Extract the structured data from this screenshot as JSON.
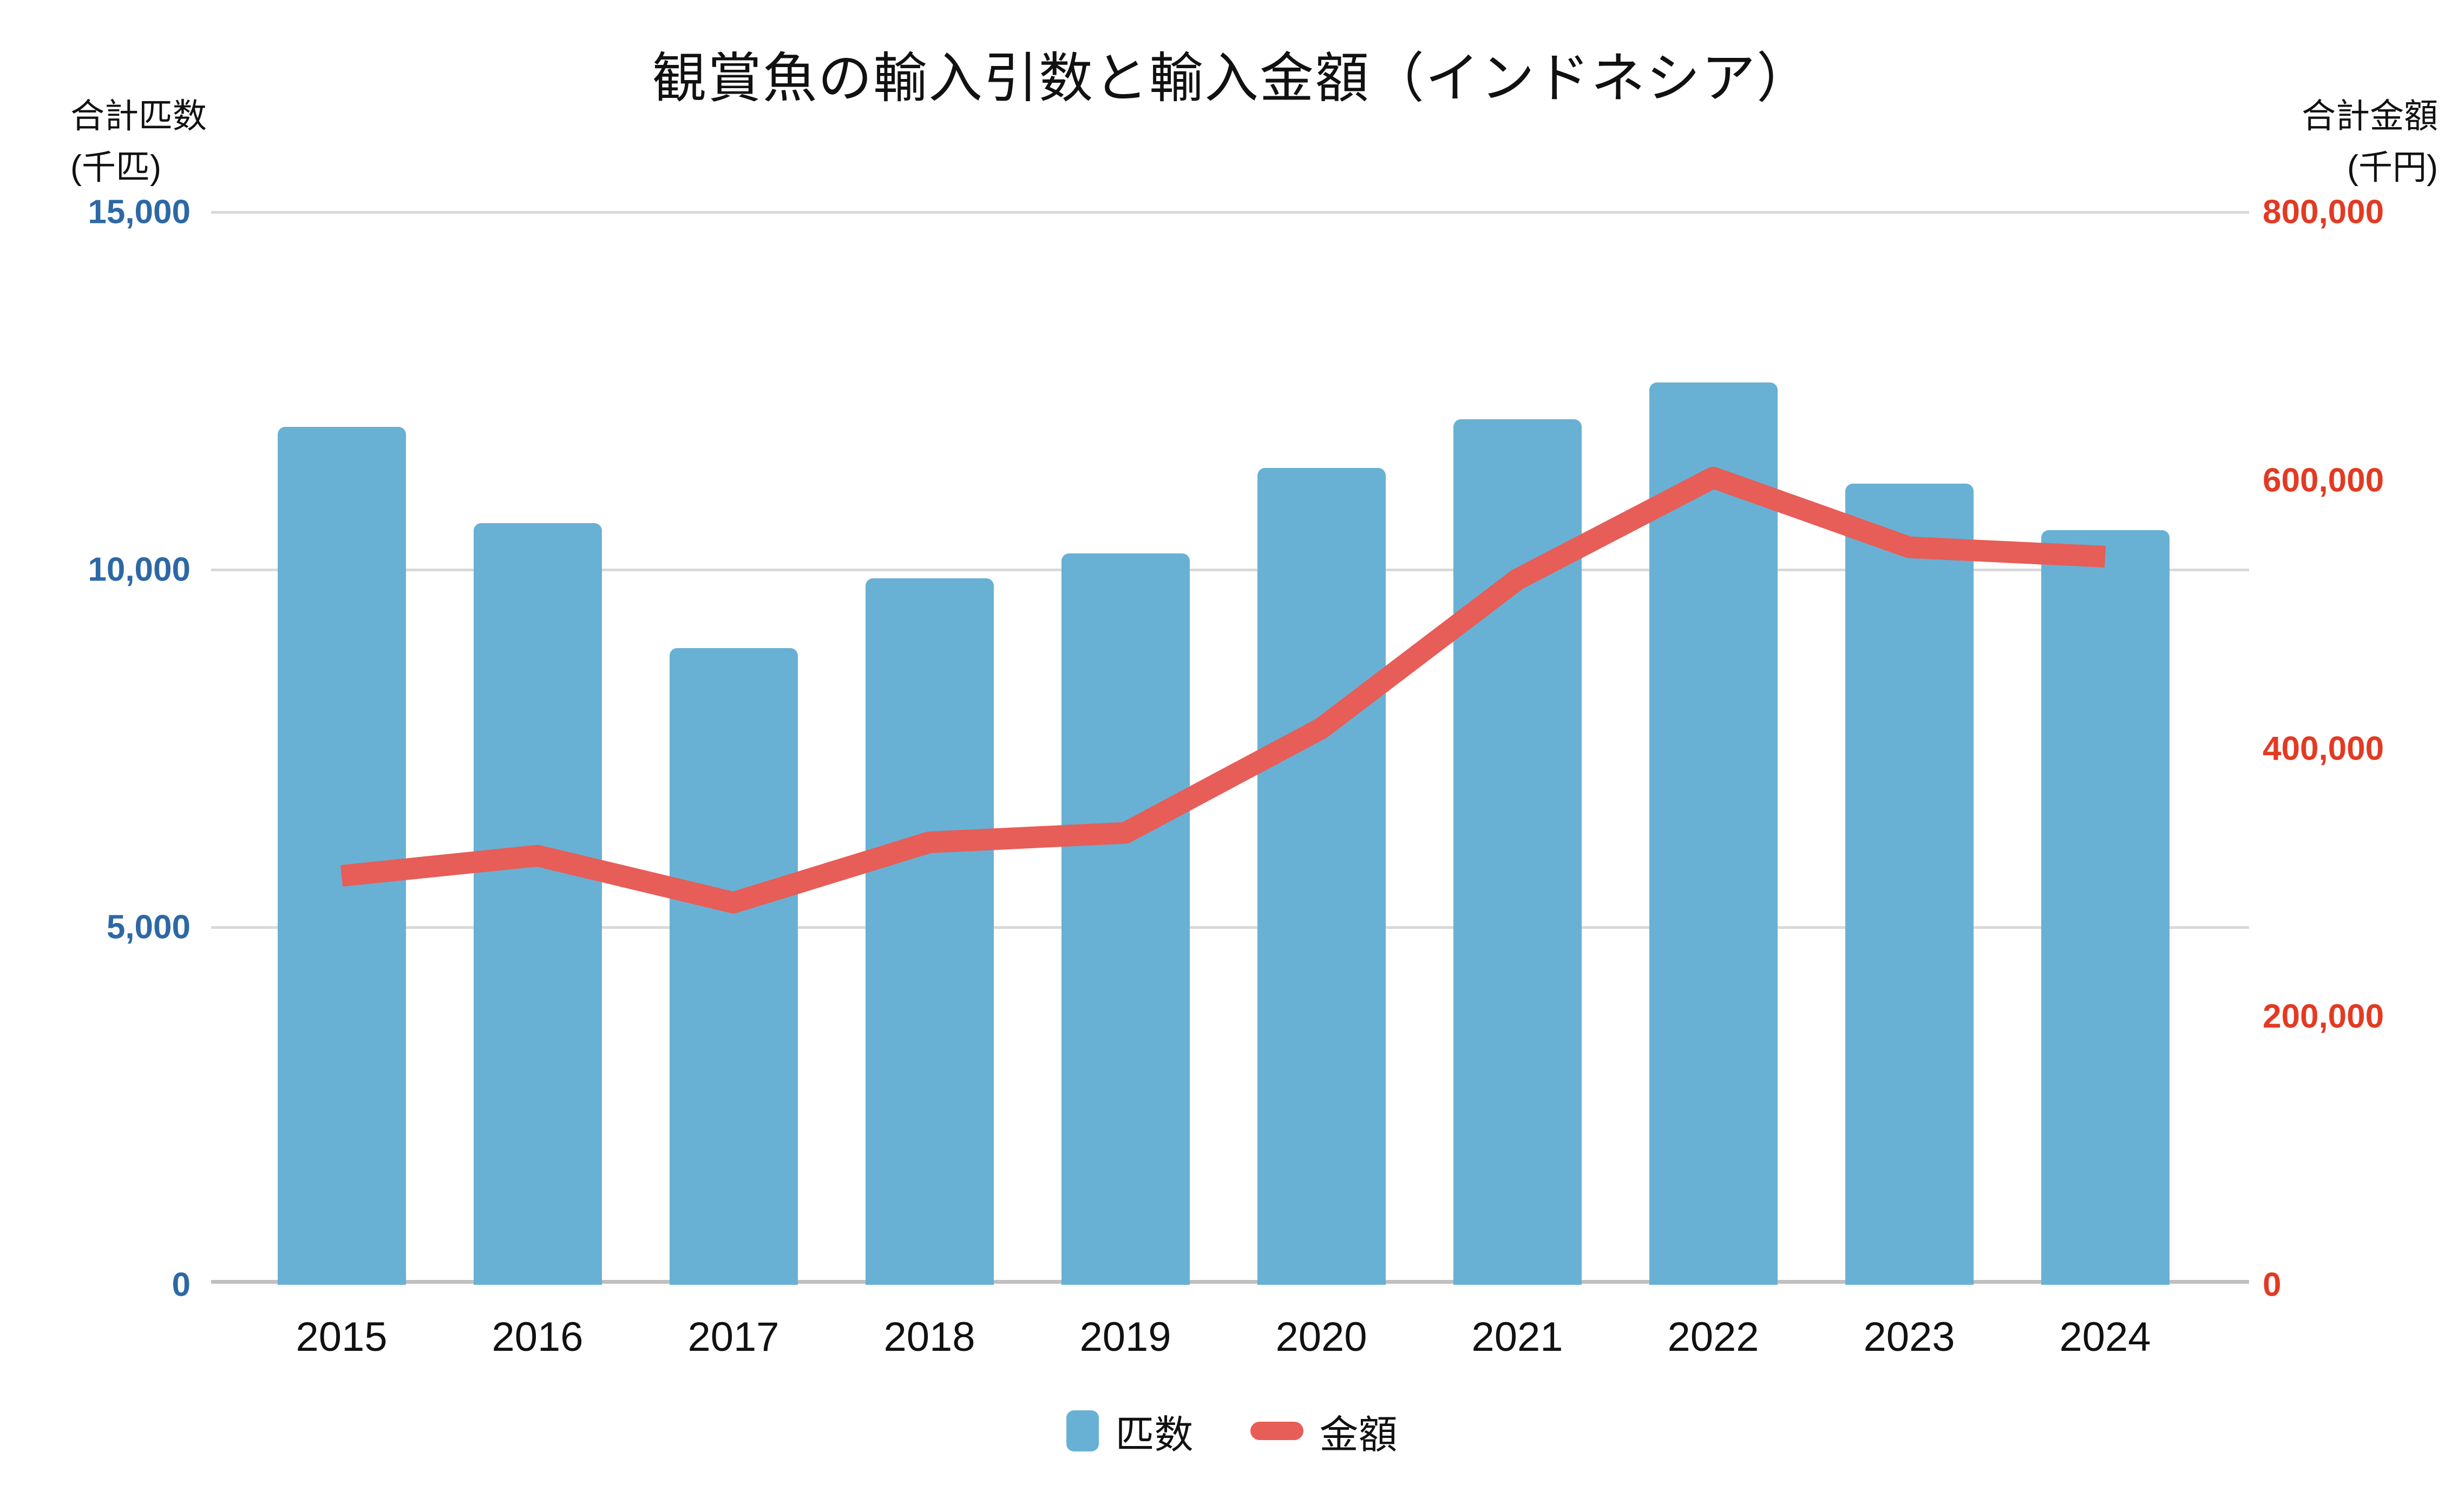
{
  "chart_data": {
    "type": "bar+line",
    "title": "観賞魚の輸入引数と輸入金額（インドネシア）",
    "categories": [
      "2015",
      "2016",
      "2017",
      "2018",
      "2019",
      "2020",
      "2021",
      "2022",
      "2023",
      "2024"
    ],
    "series": [
      {
        "name": "匹数",
        "type": "bar",
        "axis": "left",
        "color": "#68B1D4",
        "values": [
          12000,
          10650,
          8900,
          9880,
          10230,
          11420,
          12100,
          12620,
          11200,
          10550
        ]
      },
      {
        "name": "金額",
        "type": "line",
        "axis": "right",
        "color": "#E75D57",
        "values": [
          305000,
          320000,
          285000,
          330000,
          337000,
          415000,
          526000,
          602000,
          550000,
          543000
        ]
      }
    ],
    "left_axis": {
      "title_line1": "合計匹数",
      "title_line2": "(千匹)",
      "min": 0,
      "max": 15000,
      "ticks": [
        0,
        5000,
        10000,
        15000
      ],
      "tick_labels": [
        "0",
        "5,000",
        "10,000",
        "15,000"
      ],
      "color": "#2D68A6"
    },
    "right_axis": {
      "title_line1": "合計金額",
      "title_line2": "(千円)",
      "min": 0,
      "max": 800000,
      "ticks": [
        0,
        200000,
        400000,
        600000,
        800000
      ],
      "tick_labels": [
        "0",
        "200,000",
        "400,000",
        "600,000",
        "800,000"
      ],
      "color": "#E33A23"
    },
    "grid": true,
    "grid_color": "#D9D9D9",
    "baseline_color": "#BFBFBF",
    "legend_position": "bottom"
  }
}
